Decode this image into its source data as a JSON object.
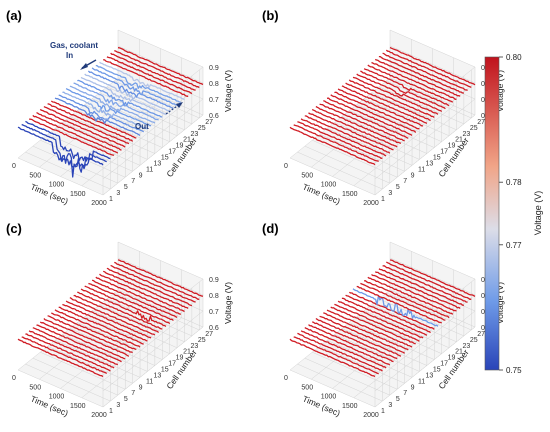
{
  "colorbar": {
    "label": "Voltage (V)",
    "min": 0.75,
    "max": 0.8,
    "ticks": [
      "0.80",
      "0.78",
      "0.77",
      "0.75"
    ],
    "tick_values": [
      0.8,
      0.78,
      0.77,
      0.75
    ],
    "colormap": "coolwarm"
  },
  "chart_data": [
    {
      "panel": "(a)",
      "type": "line",
      "x_axis": {
        "label": "Time (sec)",
        "range": [
          0,
          2000
        ],
        "ticks": [
          "0",
          "500",
          "1000",
          "1500",
          "2000"
        ]
      },
      "y_axis": {
        "label": "Cell number",
        "range": [
          1,
          28
        ],
        "ticks": [
          "1",
          "3",
          "5",
          "7",
          "9",
          "11",
          "13",
          "15",
          "17",
          "19",
          "21",
          "23",
          "25",
          "27"
        ]
      },
      "z_axis": {
        "label": "Voltage (V)",
        "range": [
          0.6,
          0.9
        ],
        "ticks": [
          "0.6",
          "0.7",
          "0.8",
          "0.9"
        ]
      },
      "annotations": [
        "Gas, coolant",
        "In",
        "Out"
      ],
      "series_count": 28,
      "nominal_voltage": 0.79,
      "events": "voltage drops in low-numbered cells (cells 1-3) reaching ~0.6-0.75 V near 900-1500 s; fluctuations on mid cells"
    },
    {
      "panel": "(b)",
      "type": "line",
      "x_axis": {
        "label": "Time (sec)",
        "range": [
          0,
          2000
        ],
        "ticks": [
          "0",
          "500",
          "1000",
          "1500",
          "2000"
        ]
      },
      "y_axis": {
        "label": "Cell number",
        "range": [
          1,
          28
        ],
        "ticks": [
          "1",
          "3",
          "5",
          "7",
          "9",
          "11",
          "13",
          "15",
          "17",
          "19",
          "21",
          "23",
          "25",
          "27"
        ]
      },
      "z_axis": {
        "label": "Voltage (V)",
        "range": [
          0.6,
          0.9
        ],
        "ticks": [
          "0.6",
          "0.7",
          "0.8",
          "0.9"
        ]
      },
      "series_count": 28,
      "nominal_voltage": 0.79,
      "events": "nearly uniform voltage, small dips near 1000 s"
    },
    {
      "panel": "(c)",
      "type": "line",
      "x_axis": {
        "label": "Time (sec)",
        "range": [
          0,
          2000
        ],
        "ticks": [
          "0",
          "500",
          "1000",
          "1500",
          "2000"
        ]
      },
      "y_axis": {
        "label": "Cell number",
        "range": [
          1,
          28
        ],
        "ticks": [
          "1",
          "3",
          "5",
          "7",
          "9",
          "11",
          "13",
          "15",
          "17",
          "19",
          "21",
          "23",
          "25",
          "27"
        ]
      },
      "z_axis": {
        "label": "Voltage (V)",
        "range": [
          0.6,
          0.9
        ],
        "ticks": [
          "0.6",
          "0.7",
          "0.8",
          "0.9"
        ]
      },
      "series_count": 28,
      "nominal_voltage": 0.79,
      "events": "noisy oscillation on one mid cell near 1500 s"
    },
    {
      "panel": "(d)",
      "type": "line",
      "x_axis": {
        "label": "Time (sec)",
        "range": [
          0,
          2000
        ],
        "ticks": [
          "0",
          "500",
          "1000",
          "1500",
          "2000"
        ]
      },
      "y_axis": {
        "label": "Cell number",
        "range": [
          1,
          28
        ],
        "ticks": [
          "1",
          "3",
          "5",
          "7",
          "9",
          "11",
          "13",
          "15",
          "17",
          "19",
          "21",
          "23",
          "25",
          "27"
        ]
      },
      "z_axis": {
        "label": "Voltage (V)",
        "range": [
          0.6,
          0.9
        ],
        "ticks": [
          "0.6",
          "0.7",
          "0.8",
          "0.9"
        ]
      },
      "series_count": 28,
      "nominal_voltage": 0.79,
      "events": "strong oscillation on cell ~17 from ~500 to ~1500 s"
    }
  ]
}
